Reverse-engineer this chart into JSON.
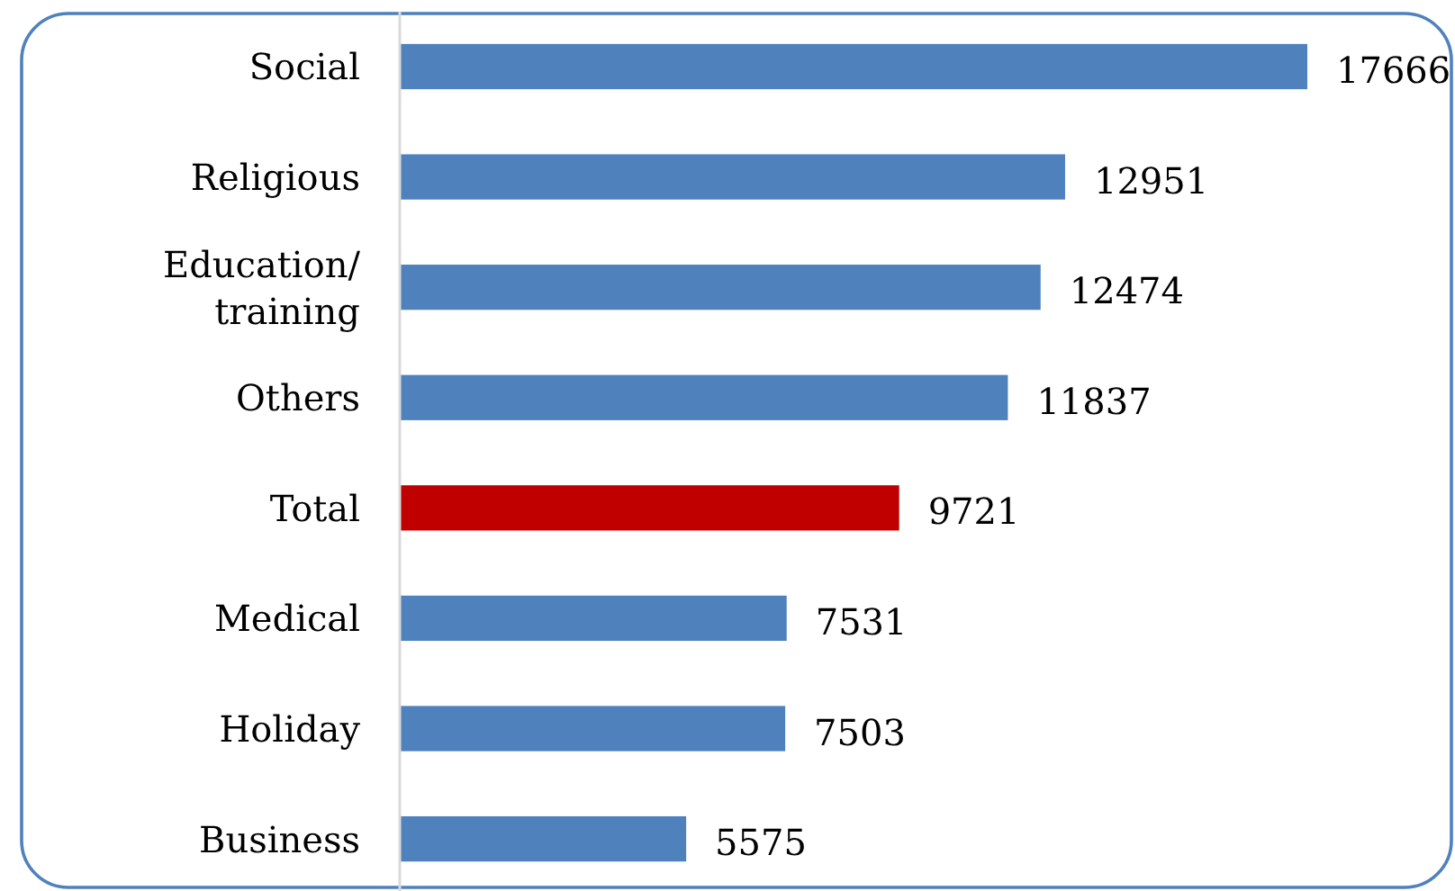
{
  "chart_data": {
    "type": "bar",
    "orientation": "horizontal",
    "categories": [
      "Social",
      "Religious",
      "Education/training",
      "Others",
      "Total",
      "Medical",
      "Holiday",
      "Business"
    ],
    "values": [
      17666,
      12951,
      12474,
      11837,
      9721,
      7531,
      7503,
      5575
    ],
    "colors": [
      "#4f81bd",
      "#4f81bd",
      "#4f81bd",
      "#4f81bd",
      "#c00000",
      "#4f81bd",
      "#4f81bd",
      "#4f81bd"
    ],
    "data_labels": true,
    "tick_labels": "y"
  }
}
